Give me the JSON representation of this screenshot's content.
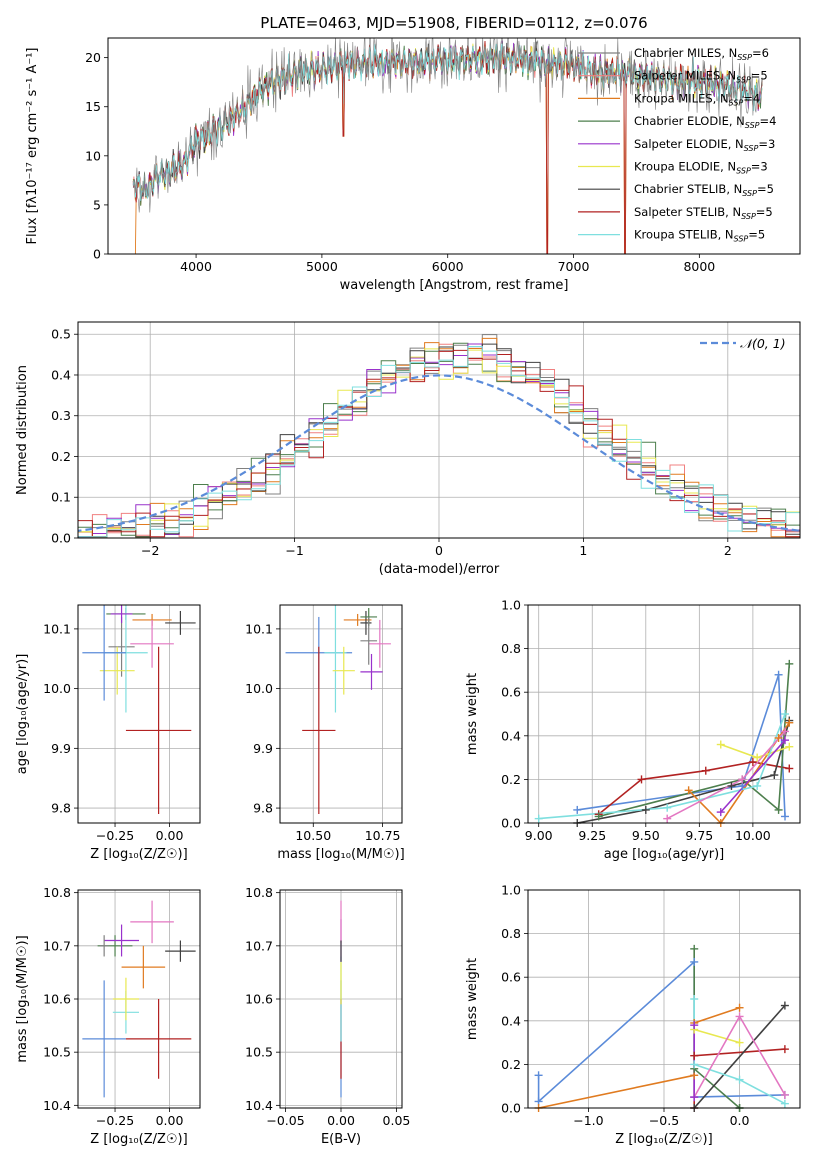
{
  "colors": {
    "chabrier_miles": "#808080",
    "salpeter_miles": "#f08080",
    "kroupa_miles": "#e07b20",
    "chabrier_elodie": "#4d7f4d",
    "salpeter_elodie": "#9932cc",
    "kroupa_elodie": "#e8e850",
    "chabrier_stelib": "#404040",
    "salpeter_stelib": "#b22222",
    "kroupa_stelib": "#7fdfdf",
    "blue_extra": "#5b8bd9",
    "pink_extra": "#e377c2",
    "olive_extra": "#a8d860",
    "normal_curve": "#5b8bd9"
  },
  "chart_data": [
    {
      "id": "spectrum",
      "type": "line",
      "title": "PLATE=0463, MJD=51908, FIBERID=0112, z=0.076",
      "xlabel": "wavelength [Angstrom, rest frame]",
      "ylabel": "Flux [fλ10⁻¹⁷ erg cm⁻² s⁻¹ A⁻¹]",
      "xlim": [
        3300,
        8800
      ],
      "ylim": [
        0,
        22
      ],
      "xticks": [
        4000,
        5000,
        6000,
        7000,
        8000
      ],
      "yticks": [
        0,
        5,
        10,
        15,
        20
      ],
      "grid": false,
      "legend_position": "right",
      "legend": [
        {
          "color_key": "chabrier_miles",
          "label": "Chabrier MILES, N",
          "sub": "SSP",
          "suffix": "=6"
        },
        {
          "color_key": "salpeter_miles",
          "label": "Salpeter MILES, N",
          "sub": "SSP",
          "suffix": "=5"
        },
        {
          "color_key": "kroupa_miles",
          "label": "Kroupa MILES, N",
          "sub": "SSP",
          "suffix": "=4"
        },
        {
          "color_key": "chabrier_elodie",
          "label": "Chabrier ELODIE, N",
          "sub": "SSP",
          "suffix": "=4"
        },
        {
          "color_key": "salpeter_elodie",
          "label": "Salpeter ELODIE, N",
          "sub": "SSP",
          "suffix": "=3"
        },
        {
          "color_key": "kroupa_elodie",
          "label": "Kroupa ELODIE, N",
          "sub": "SSP",
          "suffix": "=3"
        },
        {
          "color_key": "chabrier_stelib",
          "label": "Chabrier STELIB, N",
          "sub": "SSP",
          "suffix": "=5"
        },
        {
          "color_key": "salpeter_stelib",
          "label": "Salpeter STELIB, N",
          "sub": "SSP",
          "suffix": "=5"
        },
        {
          "color_key": "kroupa_stelib",
          "label": "Kroupa STELIB, N",
          "sub": "SSP",
          "suffix": "=5"
        }
      ],
      "continuum": [
        [
          3500,
          7
        ],
        [
          3600,
          6.5
        ],
        [
          3700,
          8
        ],
        [
          3800,
          8.5
        ],
        [
          3900,
          9
        ],
        [
          4000,
          11.5
        ],
        [
          4100,
          12
        ],
        [
          4200,
          13
        ],
        [
          4300,
          14
        ],
        [
          4400,
          15
        ],
        [
          4500,
          16.5
        ],
        [
          4600,
          17.5
        ],
        [
          4800,
          18.5
        ],
        [
          5000,
          18.8
        ],
        [
          5200,
          19.2
        ],
        [
          5400,
          19.5
        ],
        [
          5600,
          19.6
        ],
        [
          5800,
          19.5
        ],
        [
          6000,
          19.8
        ],
        [
          6200,
          19.8
        ],
        [
          6400,
          20
        ],
        [
          6600,
          19.8
        ],
        [
          6800,
          19.5
        ],
        [
          7000,
          19.3
        ],
        [
          7200,
          18.5
        ],
        [
          7400,
          18.5
        ],
        [
          7600,
          18
        ],
        [
          7800,
          17.5
        ],
        [
          8000,
          17.5
        ],
        [
          8200,
          17.2
        ],
        [
          8400,
          16.5
        ],
        [
          8500,
          16
        ]
      ],
      "spikes": [
        [
          5170,
          12
        ],
        [
          6790,
          0
        ],
        [
          7410,
          0
        ]
      ]
    },
    {
      "id": "residuals",
      "type": "histogram",
      "xlabel": "(data-model)/error",
      "ylabel": "Normed distribution",
      "xlim": [
        -2.5,
        2.5
      ],
      "ylim": [
        0,
        0.53
      ],
      "xticks": [
        -2,
        -1,
        0,
        1,
        2
      ],
      "xtick_labels": [
        "−2",
        "−1",
        "0",
        "1",
        "2"
      ],
      "yticks": [
        0.0,
        0.1,
        0.2,
        0.3,
        0.4,
        0.5
      ],
      "ytick_labels": [
        "0.0",
        "0.1",
        "0.2",
        "0.3",
        "0.4",
        "0.5"
      ],
      "grid": true,
      "legend_position": "top-right",
      "legend": [
        {
          "color_key": "normal_curve",
          "label": "𝒩(0, 1)",
          "style": "dashed"
        }
      ],
      "bin_width": 0.1,
      "x_start": -2.5
    },
    {
      "id": "age_vs_Z",
      "type": "scatter",
      "xlabel": "Z [log₁₀(Z/Z☉)]",
      "ylabel": "age  [log₁₀(age/yr)]",
      "xlim": [
        -0.42,
        0.14
      ],
      "ylim": [
        9.775,
        10.14
      ],
      "xticks": [
        -0.25,
        0.0
      ],
      "xtick_labels": [
        "−0.25",
        "0.00"
      ],
      "yticks": [
        9.8,
        9.9,
        10.0,
        10.1
      ],
      "ytick_labels": [
        "9.8",
        "9.9",
        "10.0",
        "10.1"
      ],
      "grid": true,
      "points": [
        {
          "c": "chabrier_miles",
          "x": -0.22,
          "y": 10.07,
          "xe": 0.06,
          "ye": 0.05
        },
        {
          "c": "kroupa_miles",
          "x": -0.08,
          "y": 10.115,
          "xe": 0.09,
          "ye": 0.01
        },
        {
          "c": "chabrier_elodie",
          "x": -0.2,
          "y": 10.125,
          "xe": 0.09,
          "ye": 0.01
        },
        {
          "c": "kroupa_elodie",
          "x": -0.24,
          "y": 10.03,
          "xe": 0.08,
          "ye": 0.04
        },
        {
          "c": "chabrier_stelib",
          "x": 0.05,
          "y": 10.11,
          "xe": 0.07,
          "ye": 0.02
        },
        {
          "c": "salpeter_stelib",
          "x": -0.05,
          "y": 9.93,
          "xe": 0.15,
          "ye": 0.14
        },
        {
          "c": "kroupa_stelib",
          "x": -0.2,
          "y": 10.06,
          "xe": 0.1,
          "ye": 0.1
        },
        {
          "c": "blue_extra",
          "x": -0.3,
          "y": 10.06,
          "xe": 0.1,
          "ye": 0.08
        },
        {
          "c": "pink_extra",
          "x": -0.08,
          "y": 10.075,
          "xe": 0.1,
          "ye": 0.04
        },
        {
          "c": "salpeter_elodie",
          "x": -0.22,
          "y": 10.125,
          "xe": 0.05,
          "ye": 0.015
        }
      ]
    },
    {
      "id": "age_vs_mass",
      "type": "scatter",
      "xlabel": "mass [log₁₀(M/M☉)]",
      "ylabel": "",
      "xlim": [
        10.38,
        10.82
      ],
      "ylim": [
        9.775,
        10.14
      ],
      "xticks": [
        10.5,
        10.75
      ],
      "xtick_labels": [
        "10.50",
        "10.75"
      ],
      "yticks": [
        9.8,
        9.9,
        10.0,
        10.1
      ],
      "ytick_labels": [
        "9.8",
        "9.9",
        "10.0",
        "10.1"
      ],
      "grid": true,
      "points": [
        {
          "c": "blue_extra",
          "x": 10.52,
          "y": 10.06,
          "xe": 0.12,
          "ye": 0.06
        },
        {
          "c": "salpeter_stelib",
          "x": 10.52,
          "y": 9.93,
          "xe": 0.06,
          "ye": 0.14
        },
        {
          "c": "kroupa_stelib",
          "x": 10.58,
          "y": 10.06,
          "xe": 0.04,
          "ye": 0.1
        },
        {
          "c": "kroupa_miles",
          "x": 10.66,
          "y": 10.115,
          "xe": 0.05,
          "ye": 0.01
        },
        {
          "c": "kroupa_elodie",
          "x": 10.61,
          "y": 10.03,
          "xe": 0.04,
          "ye": 0.04
        },
        {
          "c": "chabrier_stelib",
          "x": 10.69,
          "y": 10.11,
          "xe": 0.02,
          "ye": 0.02
        },
        {
          "c": "chabrier_elodie",
          "x": 10.7,
          "y": 10.12,
          "xe": 0.03,
          "ye": 0.015
        },
        {
          "c": "salpeter_elodie",
          "x": 10.71,
          "y": 10.028,
          "xe": 0.04,
          "ye": 0.03
        },
        {
          "c": "pink_extra",
          "x": 10.74,
          "y": 10.075,
          "xe": 0.04,
          "ye": 0.04
        },
        {
          "c": "chabrier_miles",
          "x": 10.7,
          "y": 10.08,
          "xe": 0.03,
          "ye": 0.04
        }
      ]
    },
    {
      "id": "weight_vs_age",
      "type": "line",
      "xlabel": "age  [log₁₀(age/yr)]",
      "ylabel": "mass weight",
      "xlim": [
        8.95,
        10.22
      ],
      "ylim": [
        0.0,
        1.0
      ],
      "xticks": [
        9.0,
        9.25,
        9.5,
        9.75,
        10.0
      ],
      "xtick_labels": [
        "9.00",
        "9.25",
        "9.50",
        "9.75",
        "10.00"
      ],
      "yticks": [
        0.0,
        0.2,
        0.4,
        0.6,
        0.8,
        1.0
      ],
      "ytick_labels": [
        "0.0",
        "0.2",
        "0.4",
        "0.6",
        "0.8",
        "1.0"
      ],
      "grid": true,
      "series": [
        {
          "c": "blue_extra",
          "x": [
            9.18,
            9.95,
            10.12,
            10.15
          ],
          "y": [
            0.06,
            0.17,
            0.68,
            0.03
          ]
        },
        {
          "c": "salpeter_stelib",
          "x": [
            9.28,
            9.48,
            9.78,
            10.0,
            10.17
          ],
          "y": [
            0.04,
            0.2,
            0.24,
            0.28,
            0.25
          ]
        },
        {
          "c": "chabrier_stelib",
          "x": [
            9.18,
            9.5,
            9.9,
            10.1,
            10.17
          ],
          "y": [
            0.0,
            0.06,
            0.17,
            0.22,
            0.47
          ]
        },
        {
          "c": "chabrier_elodie",
          "x": [
            9.28,
            9.95,
            10.12,
            10.17
          ],
          "y": [
            0.03,
            0.2,
            0.06,
            0.73
          ]
        },
        {
          "c": "kroupa_miles",
          "x": [
            9.7,
            9.85,
            10.12,
            10.17
          ],
          "y": [
            0.15,
            0.0,
            0.39,
            0.46
          ]
        },
        {
          "c": "kroupa_elodie",
          "x": [
            9.85,
            10.02,
            10.17
          ],
          "y": [
            0.36,
            0.3,
            0.35
          ]
        },
        {
          "c": "kroupa_stelib",
          "x": [
            9.0,
            9.6,
            10.02,
            10.15
          ],
          "y": [
            0.02,
            0.07,
            0.17,
            0.5
          ]
        },
        {
          "c": "salpeter_elodie",
          "x": [
            9.85,
            10.15
          ],
          "y": [
            0.05,
            0.38
          ]
        },
        {
          "c": "pink_extra",
          "x": [
            9.6,
            9.95,
            10.15
          ],
          "y": [
            0.02,
            0.2,
            0.42
          ]
        }
      ]
    },
    {
      "id": "mass_vs_Z",
      "type": "scatter",
      "xlabel": "Z [log₁₀(Z/Z☉)]",
      "ylabel": "mass [log₁₀(M/M☉)]",
      "xlim": [
        -0.42,
        0.14
      ],
      "ylim": [
        10.395,
        10.805
      ],
      "xticks": [
        -0.25,
        0.0
      ],
      "xtick_labels": [
        "−0.25",
        "0.00"
      ],
      "yticks": [
        10.4,
        10.5,
        10.6,
        10.7,
        10.8
      ],
      "ytick_labels": [
        "10.4",
        "10.5",
        "10.6",
        "10.7",
        "10.8"
      ],
      "grid": true,
      "points": [
        {
          "c": "blue_extra",
          "x": -0.3,
          "y": 10.525,
          "xe": 0.1,
          "ye": 0.11
        },
        {
          "c": "salpeter_stelib",
          "x": -0.05,
          "y": 10.525,
          "xe": 0.15,
          "ye": 0.075
        },
        {
          "c": "kroupa_stelib",
          "x": -0.2,
          "y": 10.575,
          "xe": 0.06,
          "ye": 0.04
        },
        {
          "c": "kroupa_elodie",
          "x": -0.2,
          "y": 10.6,
          "xe": 0.06,
          "ye": 0.04
        },
        {
          "c": "kroupa_miles",
          "x": -0.12,
          "y": 10.66,
          "xe": 0.1,
          "ye": 0.04
        },
        {
          "c": "chabrier_stelib",
          "x": 0.05,
          "y": 10.69,
          "xe": 0.07,
          "ye": 0.02
        },
        {
          "c": "chabrier_elodie",
          "x": -0.25,
          "y": 10.7,
          "xe": 0.08,
          "ye": 0.02
        },
        {
          "c": "salpeter_elodie",
          "x": -0.22,
          "y": 10.71,
          "xe": 0.08,
          "ye": 0.03
        },
        {
          "c": "pink_extra",
          "x": -0.08,
          "y": 10.745,
          "xe": 0.1,
          "ye": 0.04
        },
        {
          "c": "chabrier_miles",
          "x": -0.3,
          "y": 10.7,
          "xe": 0.02,
          "ye": 0.02
        }
      ]
    },
    {
      "id": "mass_vs_ebv",
      "type": "scatter",
      "xlabel": "E(B-V)",
      "ylabel": "",
      "xlim": [
        -0.055,
        0.055
      ],
      "ylim": [
        10.395,
        10.805
      ],
      "xticks": [
        -0.05,
        0.0,
        0.05
      ],
      "xtick_labels": [
        "−0.05",
        "0.00",
        "0.05"
      ],
      "yticks": [
        10.4,
        10.5,
        10.6,
        10.7,
        10.8
      ],
      "ytick_labels": [
        "10.4",
        "10.5",
        "10.6",
        "10.7",
        "10.8"
      ],
      "grid": true,
      "points": [
        {
          "c": "blue_extra",
          "x": 0.0,
          "y": 10.525,
          "xe": 0.0,
          "ye": 0.11
        },
        {
          "c": "salpeter_stelib",
          "x": 0.0,
          "y": 10.525,
          "xe": 0.0,
          "ye": 0.075
        },
        {
          "c": "kroupa_stelib",
          "x": 0.0,
          "y": 10.6,
          "xe": 0.0,
          "ye": 0.08
        },
        {
          "c": "kroupa_elodie",
          "x": 0.0,
          "y": 10.63,
          "xe": 0.0,
          "ye": 0.04
        },
        {
          "c": "salpeter_elodie",
          "x": 0.0,
          "y": 10.71,
          "xe": 0.0,
          "ye": 0.04
        },
        {
          "c": "pink_extra",
          "x": 0.0,
          "y": 10.745,
          "xe": 0.0,
          "ye": 0.04
        },
        {
          "c": "chabrier_stelib",
          "x": 0.0,
          "y": 10.69,
          "xe": 0.0,
          "ye": 0.02
        }
      ]
    },
    {
      "id": "weight_vs_Z",
      "type": "line",
      "xlabel": "Z [log₁₀(Z/Z☉)]",
      "ylabel": "mass weight",
      "xlim": [
        -1.4,
        0.4
      ],
      "ylim": [
        0.0,
        1.0
      ],
      "xticks": [
        -1.0,
        -0.5,
        0.0
      ],
      "xtick_labels": [
        "−1.0",
        "−0.5",
        "0.0"
      ],
      "yticks": [
        0.0,
        0.2,
        0.4,
        0.6,
        0.8,
        1.0
      ],
      "ytick_labels": [
        "0.0",
        "0.2",
        "0.4",
        "0.6",
        "0.8",
        "1.0"
      ],
      "grid": true,
      "series": [
        {
          "c": "blue_extra",
          "x": [
            -1.33,
            -1.33,
            -0.3,
            -0.3,
            0.3
          ],
          "y": [
            0.15,
            0.03,
            0.67,
            0.05,
            0.06
          ]
        },
        {
          "c": "kroupa_miles",
          "x": [
            -1.33,
            -0.3,
            -0.3,
            0.0
          ],
          "y": [
            0.0,
            0.15,
            0.39,
            0.46
          ]
        },
        {
          "c": "chabrier_elodie",
          "x": [
            -0.3,
            -0.3,
            0.0,
            0.0
          ],
          "y": [
            0.73,
            0.18,
            0.0,
            0.0
          ]
        },
        {
          "c": "salpeter_stelib",
          "x": [
            -0.3,
            -0.3,
            0.3
          ],
          "y": [
            0.0,
            0.24,
            0.27
          ]
        },
        {
          "c": "chabrier_stelib",
          "x": [
            -0.3,
            0.3
          ],
          "y": [
            0.0,
            0.47
          ]
        },
        {
          "c": "kroupa_elodie",
          "x": [
            -0.3,
            0.0
          ],
          "y": [
            0.36,
            0.3
          ]
        },
        {
          "c": "kroupa_stelib",
          "x": [
            -0.3,
            -0.3,
            0.0,
            0.3
          ],
          "y": [
            0.5,
            0.2,
            0.13,
            0.02
          ]
        },
        {
          "c": "pink_extra",
          "x": [
            -0.3,
            0.0,
            0.3
          ],
          "y": [
            0.05,
            0.42,
            0.06
          ]
        },
        {
          "c": "salpeter_elodie",
          "x": [
            -0.3,
            -0.3
          ],
          "y": [
            0.05,
            0.38
          ]
        }
      ]
    }
  ]
}
